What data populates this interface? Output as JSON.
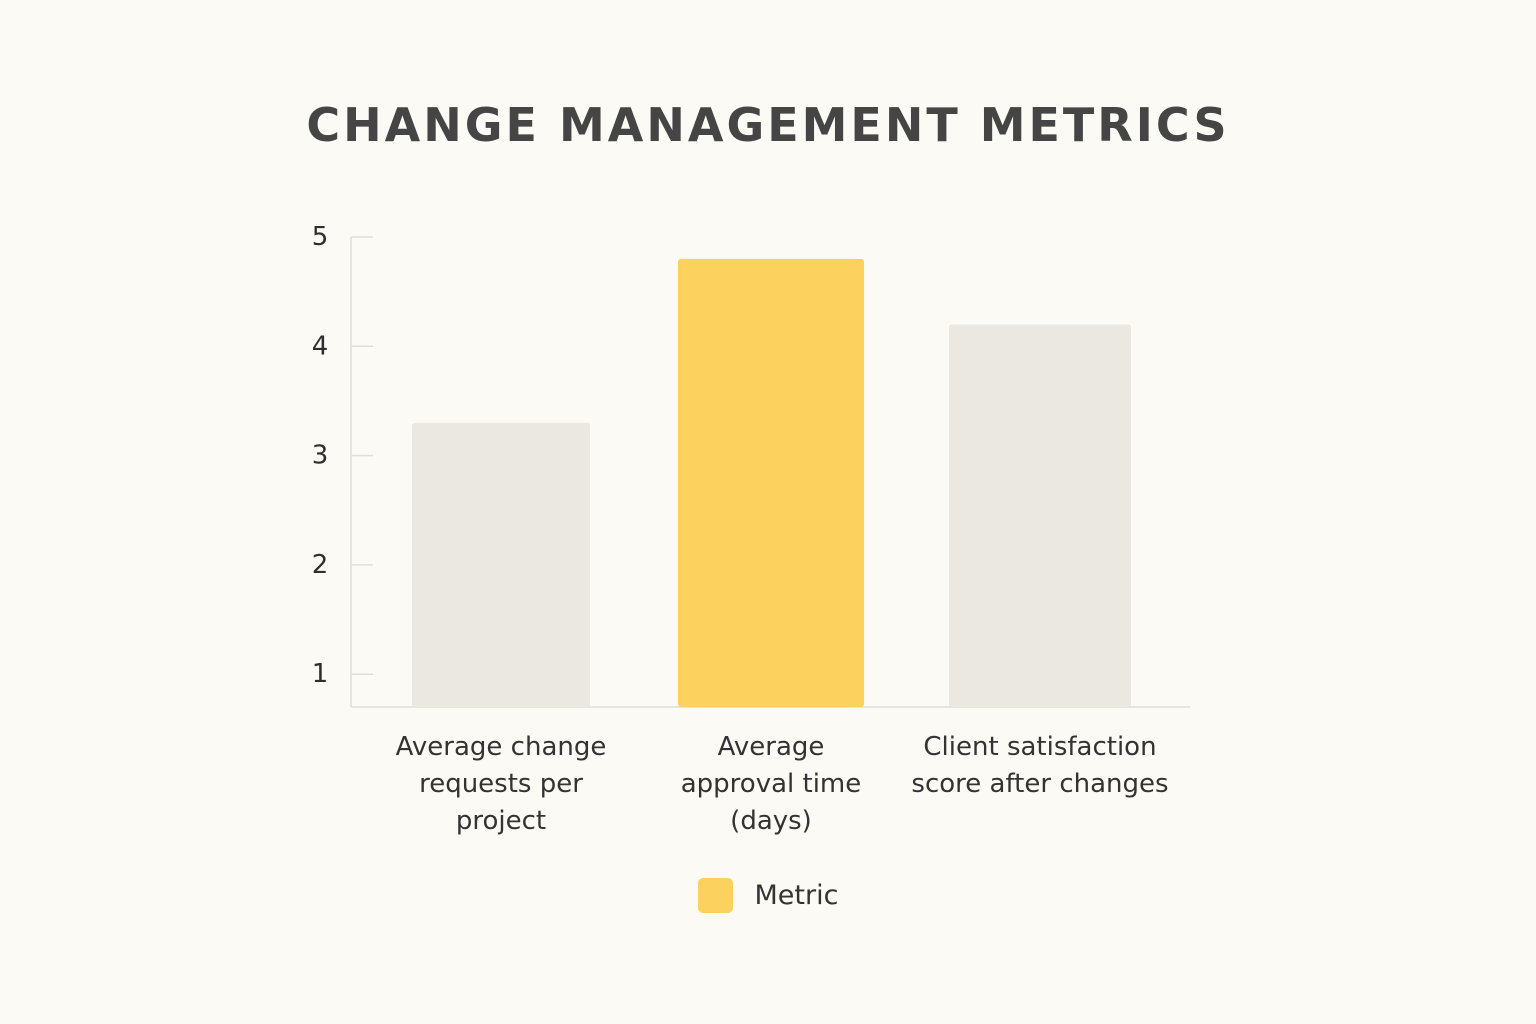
{
  "chart_data": {
    "type": "bar",
    "title": "CHANGE MANAGEMENT METRICS",
    "categories": [
      [
        "Average change",
        "requests per",
        "project"
      ],
      [
        "Average",
        "approval time",
        "(days)"
      ],
      [
        "Client satisfaction",
        "score after changes"
      ]
    ],
    "series": [
      {
        "name": "Metric",
        "values": [
          3.3,
          4.8,
          4.2
        ]
      }
    ],
    "highlight_index": 1,
    "ylim": [
      0.7,
      5
    ],
    "yticks": [
      1,
      2,
      3,
      4,
      5
    ],
    "xlabel": "",
    "ylabel": "",
    "grid": false,
    "legend": {
      "position": "bottom-center",
      "label": "Metric"
    },
    "colors": {
      "highlight": "#fdd15e",
      "base": "#ebe7e1",
      "axis": "#e2ded7",
      "background": "#fcfaf5"
    }
  }
}
